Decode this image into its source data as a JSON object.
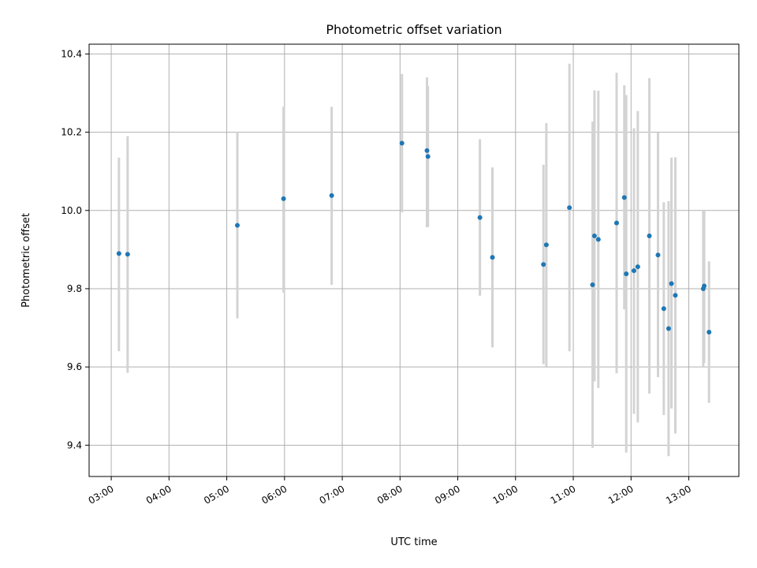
{
  "chart_data": {
    "type": "scatter",
    "title": "Photometric offset variation",
    "xlabel": "UTC time",
    "ylabel": "Photometric offset",
    "x_ticks": [
      "03:00",
      "04:00",
      "05:00",
      "06:00",
      "07:00",
      "08:00",
      "09:00",
      "10:00",
      "11:00",
      "12:00",
      "13:00"
    ],
    "y_ticks": [
      "9.4",
      "9.6",
      "9.8",
      "10.0",
      "10.2",
      "10.4"
    ],
    "xlim": [
      "02:37",
      "13:52"
    ],
    "ylim": [
      9.32,
      10.425
    ],
    "grid": true,
    "marker_color": "#1f77b4",
    "errorbar_color": "#d3d3d3",
    "points": [
      {
        "x": "03:08",
        "y": 9.89,
        "err_low": 9.64,
        "err_high": 10.135
      },
      {
        "x": "03:17",
        "y": 9.888,
        "err_low": 9.585,
        "err_high": 10.19
      },
      {
        "x": "05:11",
        "y": 9.962,
        "err_low": 9.724,
        "err_high": 10.2
      },
      {
        "x": "05:59",
        "y": 10.03,
        "err_low": 9.79,
        "err_high": 10.265
      },
      {
        "x": "06:49",
        "y": 10.038,
        "err_low": 9.81,
        "err_high": 10.265
      },
      {
        "x": "08:02",
        "y": 10.172,
        "err_low": 9.995,
        "err_high": 10.349
      },
      {
        "x": "08:28",
        "y": 10.153,
        "err_low": 9.957,
        "err_high": 10.34
      },
      {
        "x": "08:29",
        "y": 10.138,
        "err_low": 9.958,
        "err_high": 10.318
      },
      {
        "x": "09:23",
        "y": 9.982,
        "err_low": 9.782,
        "err_high": 10.182
      },
      {
        "x": "09:36",
        "y": 9.88,
        "err_low": 9.65,
        "err_high": 10.11
      },
      {
        "x": "10:29",
        "y": 9.862,
        "err_low": 9.607,
        "err_high": 10.117
      },
      {
        "x": "10:32",
        "y": 9.912,
        "err_low": 9.601,
        "err_high": 10.223
      },
      {
        "x": "10:56",
        "y": 10.007,
        "err_low": 9.64,
        "err_high": 10.375
      },
      {
        "x": "11:20",
        "y": 9.81,
        "err_low": 9.393,
        "err_high": 10.227
      },
      {
        "x": "11:22",
        "y": 9.935,
        "err_low": 9.563,
        "err_high": 10.307
      },
      {
        "x": "11:26",
        "y": 9.926,
        "err_low": 9.546,
        "err_high": 10.306
      },
      {
        "x": "11:45",
        "y": 9.968,
        "err_low": 9.584,
        "err_high": 10.352
      },
      {
        "x": "11:53",
        "y": 10.033,
        "err_low": 9.747,
        "err_high": 10.32
      },
      {
        "x": "11:55",
        "y": 9.838,
        "err_low": 9.381,
        "err_high": 10.295
      },
      {
        "x": "12:03",
        "y": 9.846,
        "err_low": 9.48,
        "err_high": 10.21
      },
      {
        "x": "12:07",
        "y": 9.856,
        "err_low": 9.458,
        "err_high": 10.254
      },
      {
        "x": "12:19",
        "y": 9.935,
        "err_low": 9.532,
        "err_high": 10.338
      },
      {
        "x": "12:28",
        "y": 9.886,
        "err_low": 9.574,
        "err_high": 10.199
      },
      {
        "x": "12:34",
        "y": 9.749,
        "err_low": 9.477,
        "err_high": 10.021
      },
      {
        "x": "12:39",
        "y": 9.698,
        "err_low": 9.372,
        "err_high": 10.024
      },
      {
        "x": "12:42",
        "y": 9.813,
        "err_low": 9.494,
        "err_high": 10.135
      },
      {
        "x": "12:46",
        "y": 9.783,
        "err_low": 9.43,
        "err_high": 10.136
      },
      {
        "x": "13:15",
        "y": 9.8,
        "err_low": 9.6,
        "err_high": 10.0
      },
      {
        "x": "13:16",
        "y": 9.807,
        "err_low": 9.61,
        "err_high": 10.002
      },
      {
        "x": "13:21",
        "y": 9.689,
        "err_low": 9.508,
        "err_high": 9.87
      }
    ]
  }
}
